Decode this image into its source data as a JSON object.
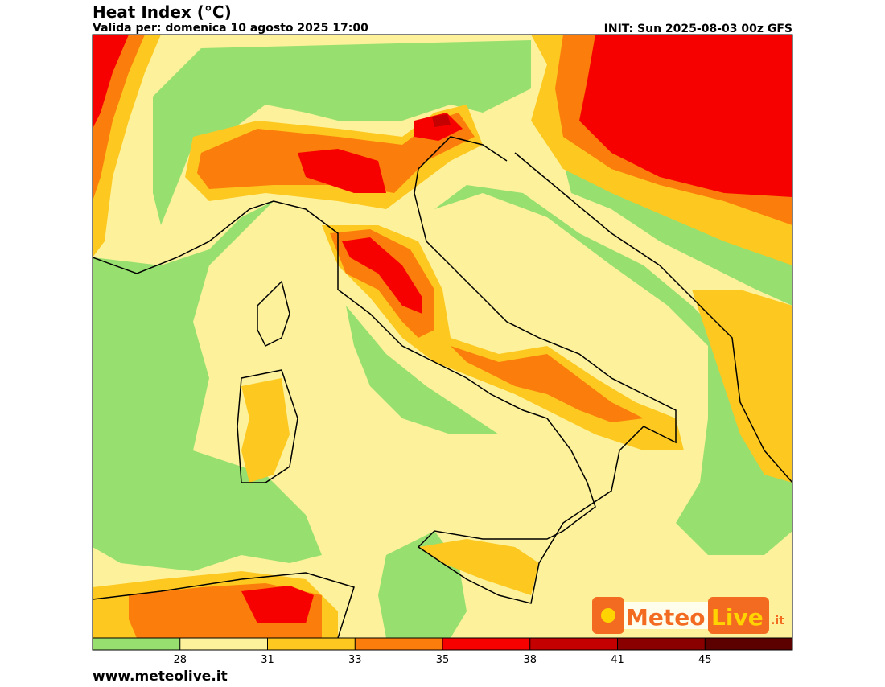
{
  "header": {
    "title": "Heat Index (°C)",
    "subtitle": "Valida per: domenica 10 agosto 2025 17:00",
    "init": "INIT: Sun 2025-08-03 00z GFS"
  },
  "colorbar": {
    "colors": [
      "#97e06f",
      "#fdf29b",
      "#fdc81f",
      "#fb7d0b",
      "#f70000",
      "#c40000",
      "#8a0000",
      "#5c0000"
    ],
    "ticks": [
      28,
      31,
      33,
      35,
      38,
      41,
      45
    ]
  },
  "logo": {
    "brand1": "Meteo",
    "brand2": "Live",
    "suffix": ".it"
  },
  "footer": {
    "website": "www.meteolive.it"
  }
}
